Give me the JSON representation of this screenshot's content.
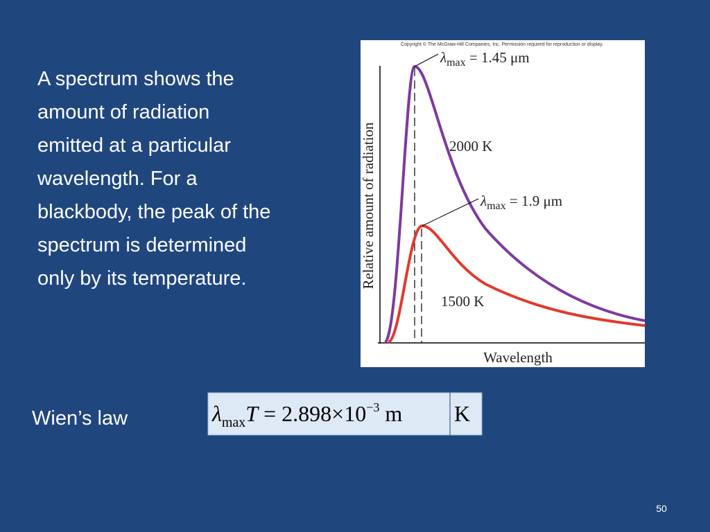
{
  "slide": {
    "body_lines": [
      "A spectrum shows the",
      "amount of radiation",
      "emitted at a particular",
      "wavelength.  For a",
      "blackbody, the peak of the",
      "spectrum is determined",
      "only by its temperature."
    ],
    "figure": {
      "copyright": "Copyright © The McGraw-Hill Companies, Inc. Permission required for reproduction or display.",
      "y_label": "Relative amount of radiation",
      "x_label": "Wavelength",
      "peak_high": {
        "symbol": "λ",
        "subscript": "max",
        "rest": " = 1.45 μm"
      },
      "curve_high": "2000 K",
      "peak_low": {
        "symbol": "λ",
        "subscript": "max",
        "rest": " = 1.9 μm"
      },
      "curve_low": "1500 K"
    },
    "law_name": "Wien’s law",
    "formula": {
      "symbol": "λ",
      "subscript": "max",
      "variable": "T",
      "middle": " = 2.898×10",
      "exponent": "−3",
      "unit1": " m",
      "unit2": "K"
    },
    "page_number": "50"
  }
}
